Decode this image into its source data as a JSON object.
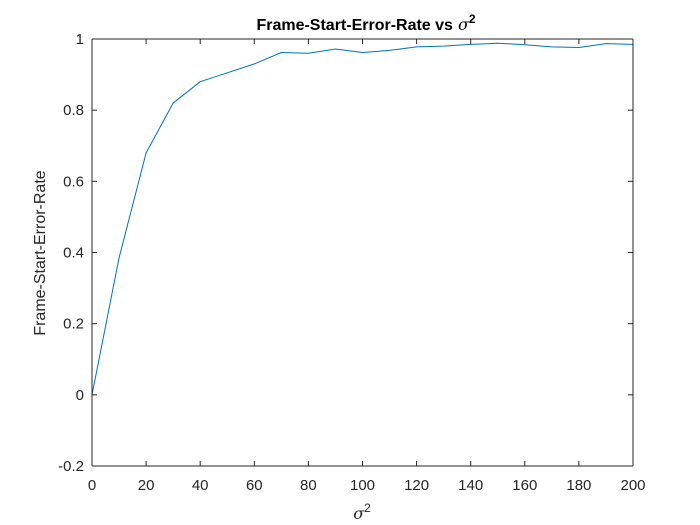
{
  "chart_data": {
    "type": "line",
    "title": "Frame-Start-Error-Rate vs",
    "title_symbol": "σ",
    "title_exponent": "2",
    "xlabel_symbol": "σ",
    "xlabel_exponent": "2",
    "ylabel": "Frame-Start-Error-Rate",
    "xlim": [
      0,
      200
    ],
    "ylim": [
      -0.2,
      1
    ],
    "xticks": [
      0,
      20,
      40,
      60,
      80,
      100,
      120,
      140,
      160,
      180,
      200
    ],
    "yticks": [
      -0.2,
      0,
      0.2,
      0.4,
      0.6,
      0.8,
      1
    ],
    "ytick_labels": [
      "-0.2",
      "0",
      "0.2",
      "0.4",
      "0.6",
      "0.8",
      "1"
    ],
    "grid": false,
    "series": [
      {
        "name": "Frame-Start-Error-Rate",
        "color": "#0072BD",
        "x": [
          0,
          10,
          20,
          30,
          40,
          50,
          60,
          70,
          80,
          90,
          100,
          110,
          120,
          130,
          140,
          150,
          160,
          170,
          180,
          190,
          200
        ],
        "values": [
          0,
          0.385,
          0.68,
          0.82,
          0.88,
          0.905,
          0.93,
          0.962,
          0.96,
          0.972,
          0.962,
          0.968,
          0.978,
          0.98,
          0.985,
          0.988,
          0.984,
          0.978,
          0.976,
          0.987,
          0.985
        ]
      }
    ]
  }
}
